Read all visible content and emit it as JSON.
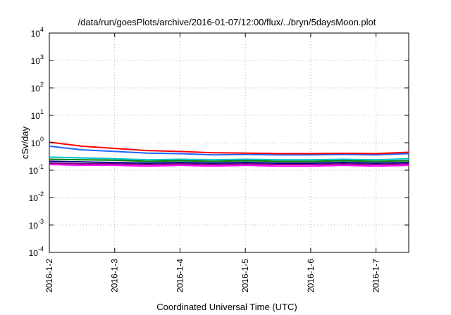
{
  "chart_data": {
    "type": "line",
    "title": "/data/run/goesPlots/archive/2016-01-07/12:00/flux/../bryn/5daysMoon.plot",
    "xlabel": "Coordinated Universal Time (UTC)",
    "ylabel": "cSv/day",
    "yscale": "log",
    "ylim": [
      0.0001,
      10000
    ],
    "xlim": [
      "2016-01-02T00:00",
      "2016-01-07T12:00"
    ],
    "grid": true,
    "legend": "none",
    "x_ticks": [
      "2016-1-2",
      "2016-1-3",
      "2016-1-4",
      "2016-1-5",
      "2016-1-6",
      "2016-1-7"
    ],
    "y_ticks": [
      {
        "base": "10",
        "exp": "-4"
      },
      {
        "base": "10",
        "exp": "-3"
      },
      {
        "base": "10",
        "exp": "-2"
      },
      {
        "base": "10",
        "exp": "-1"
      },
      {
        "base": "10",
        "exp": "0"
      },
      {
        "base": "10",
        "exp": "1"
      },
      {
        "base": "10",
        "exp": "2"
      },
      {
        "base": "10",
        "exp": "3"
      },
      {
        "base": "10",
        "exp": "4"
      }
    ],
    "x": [
      "2016-01-02T00:00",
      "2016-01-02T12:00",
      "2016-01-03T00:00",
      "2016-01-03T12:00",
      "2016-01-04T00:00",
      "2016-01-04T12:00",
      "2016-01-05T00:00",
      "2016-01-05T12:00",
      "2016-01-06T00:00",
      "2016-01-06T12:00",
      "2016-01-07T00:00",
      "2016-01-07T12:00"
    ],
    "series": [
      {
        "color": "#ff00ff",
        "values": [
          0.16,
          0.15,
          0.15,
          0.14,
          0.15,
          0.14,
          0.15,
          0.14,
          0.14,
          0.15,
          0.14,
          0.15
        ]
      },
      {
        "color": "#800080",
        "values": [
          0.18,
          0.17,
          0.17,
          0.16,
          0.17,
          0.16,
          0.17,
          0.16,
          0.16,
          0.17,
          0.16,
          0.17
        ]
      },
      {
        "color": "#000080",
        "values": [
          0.21,
          0.2,
          0.19,
          0.18,
          0.19,
          0.18,
          0.19,
          0.18,
          0.18,
          0.19,
          0.18,
          0.19
        ]
      },
      {
        "color": "#008000",
        "values": [
          0.25,
          0.24,
          0.23,
          0.21,
          0.22,
          0.21,
          0.22,
          0.21,
          0.21,
          0.22,
          0.21,
          0.22
        ]
      },
      {
        "color": "#00c0c0",
        "values": [
          0.3,
          0.28,
          0.26,
          0.24,
          0.25,
          0.24,
          0.25,
          0.24,
          0.24,
          0.25,
          0.24,
          0.26
        ]
      },
      {
        "color": "#1e64ff",
        "values": [
          0.75,
          0.55,
          0.48,
          0.42,
          0.4,
          0.36,
          0.37,
          0.36,
          0.36,
          0.37,
          0.36,
          0.4
        ]
      },
      {
        "color": "#ff0000",
        "values": [
          1.05,
          0.75,
          0.62,
          0.52,
          0.48,
          0.43,
          0.42,
          0.4,
          0.4,
          0.41,
          0.4,
          0.45
        ]
      }
    ]
  }
}
